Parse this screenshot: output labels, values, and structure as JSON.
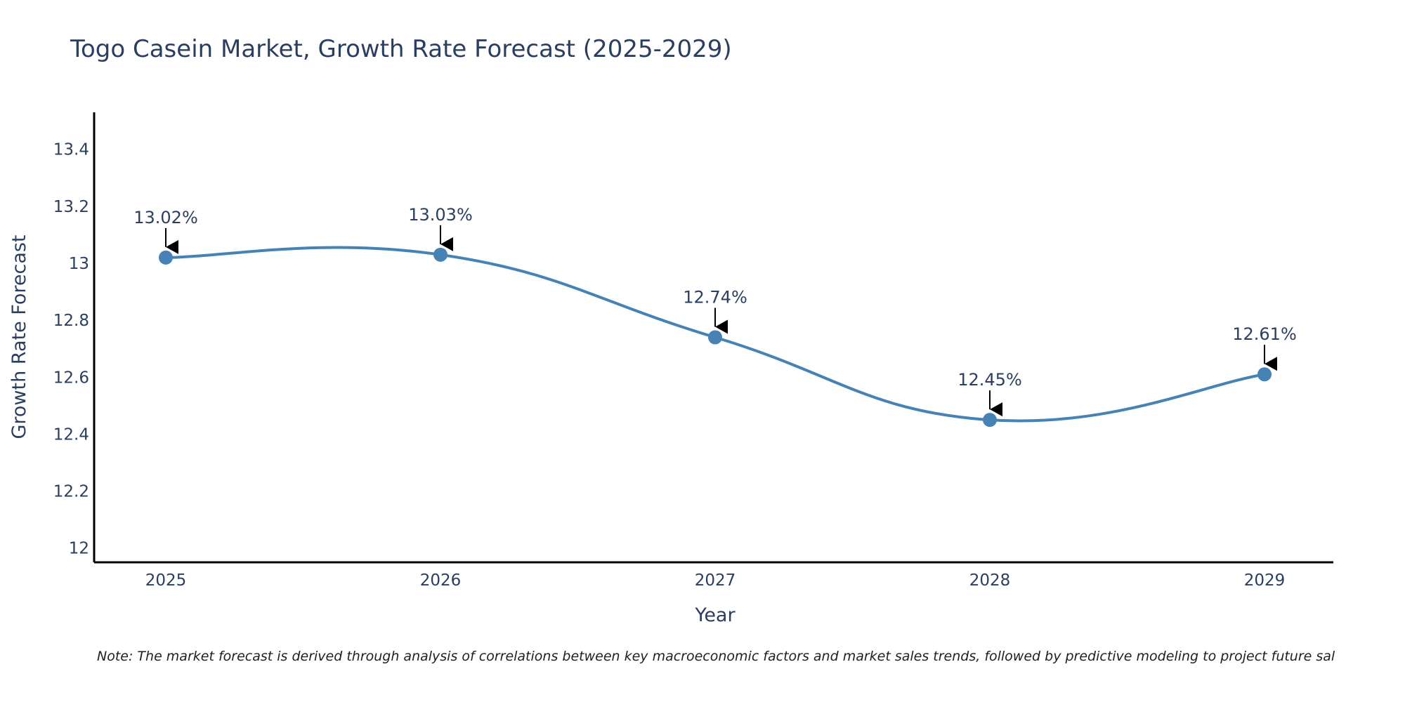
{
  "chart_data": {
    "type": "line",
    "title": "Togo Casein Market, Growth Rate Forecast (2025-2029)",
    "xlabel": "Year",
    "ylabel": "Growth Rate Forecast",
    "categories": [
      "2025",
      "2026",
      "2027",
      "2028",
      "2029"
    ],
    "series": [
      {
        "name": "Growth Rate Forecast",
        "values": [
          13.02,
          13.03,
          12.74,
          12.45,
          12.61
        ],
        "labels": [
          "13.02%",
          "13.03%",
          "12.74%",
          "12.45%",
          "12.61%"
        ],
        "color": "#4682b4"
      }
    ],
    "ylim": [
      11.95,
      13.53
    ],
    "yticks": [
      12,
      12.2,
      12.4,
      12.6,
      12.8,
      13,
      13.2,
      13.4
    ],
    "ytick_labels": [
      "12",
      "12.2",
      "12.4",
      "12.6",
      "12.8",
      "13",
      "13.2",
      "13.4"
    ],
    "xticks": [
      "2025",
      "2026",
      "2027",
      "2028",
      "2029"
    ],
    "grid": false,
    "legend": "none",
    "note": "Note: The market forecast is derived through analysis of correlations between key macroeconomic factors and market sales trends, followed by predictive modeling to project future sal"
  }
}
